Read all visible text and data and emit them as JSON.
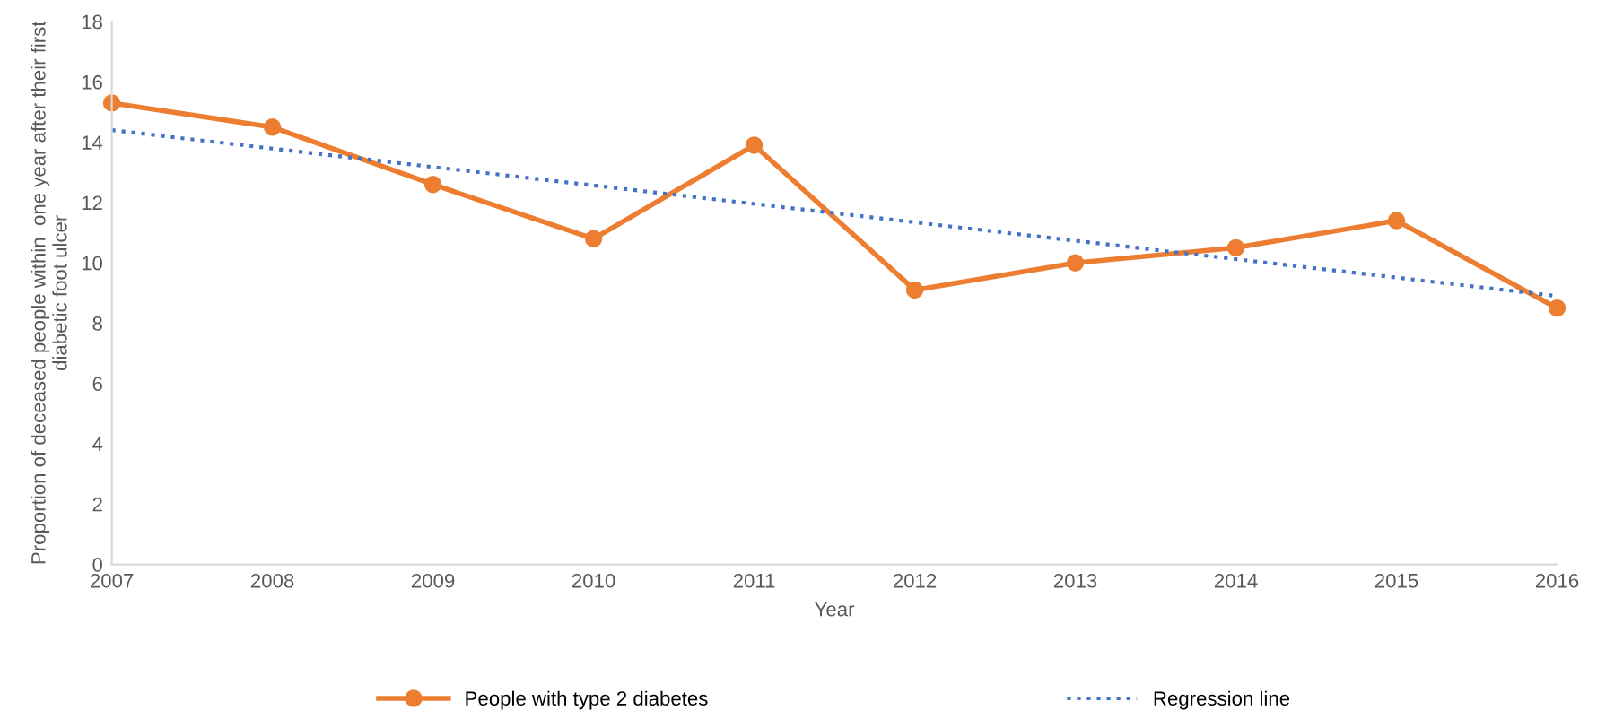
{
  "chart_data": {
    "type": "line",
    "xlabel": "Year",
    "ylabel": "Proportion of deceased people within  one year after their first diabetic foot ulcer",
    "x": [
      2007,
      2008,
      2009,
      2010,
      2011,
      2012,
      2013,
      2014,
      2015,
      2016
    ],
    "series": [
      {
        "name": "People with type 2 diabetes",
        "color": "#ed7d31",
        "values": [
          15.3,
          14.5,
          12.6,
          10.8,
          13.9,
          9.1,
          10.0,
          10.5,
          11.4,
          8.5
        ],
        "marker": "circle",
        "line_style": "solid"
      },
      {
        "name": "Regression line",
        "color": "#4472c4",
        "type": "line",
        "x": [
          2007,
          2016
        ],
        "values": [
          14.4,
          8.9
        ],
        "marker": "none",
        "line_style": "dotted"
      }
    ],
    "xlim": [
      2007,
      2016
    ],
    "xticks": [
      2007,
      2008,
      2009,
      2010,
      2011,
      2012,
      2013,
      2014,
      2015,
      2016
    ],
    "ylim": [
      0,
      18
    ],
    "yticks": [
      0,
      2,
      4,
      6,
      8,
      10,
      12,
      14,
      16,
      18
    ],
    "grid": false,
    "legend": "bottom"
  }
}
